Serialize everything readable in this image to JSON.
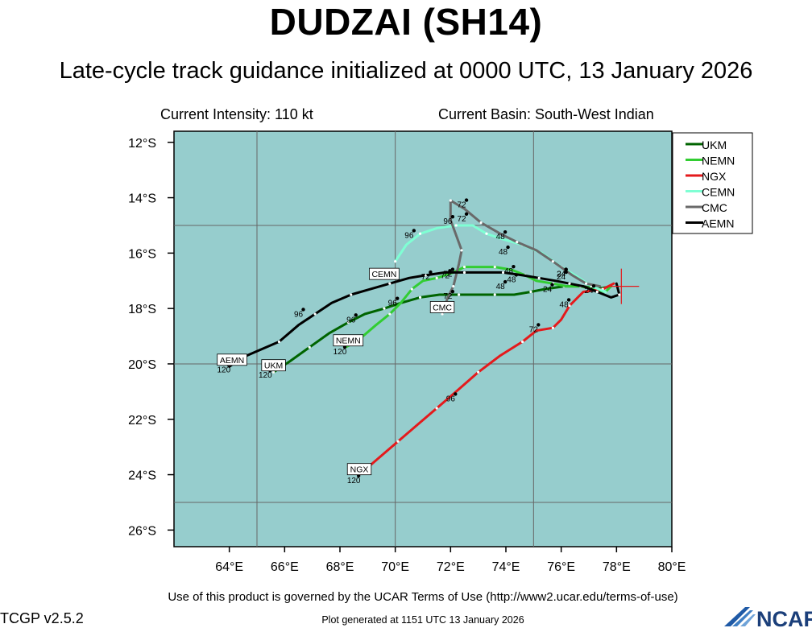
{
  "header": {
    "title": "DUDZAI (SH14)",
    "subtitle": "Late-cycle track guidance initialized at 0000 UTC, 13 January 2026",
    "intensity": "Current Intensity: 110 kt",
    "basin": "Current Basin: South-West Indian"
  },
  "footer": {
    "terms": "Use of this product is governed by the UCAR Terms of Use (http://www2.ucar.edu/terms-of-use)",
    "version": "TCGP v2.5.2",
    "generated": "Plot generated at 1151 UTC   13 January 2026",
    "logo_text": "NCAR"
  },
  "chart_data": {
    "type": "line",
    "x_range": [
      62,
      80
    ],
    "y_range": [
      -26.6,
      -11.6
    ],
    "x_ticks": [
      {
        "v": 64,
        "label": "64°E"
      },
      {
        "v": 66,
        "label": "66°E"
      },
      {
        "v": 68,
        "label": "68°E"
      },
      {
        "v": 70,
        "label": "70°E"
      },
      {
        "v": 72,
        "label": "72°E"
      },
      {
        "v": 74,
        "label": "74°E"
      },
      {
        "v": 76,
        "label": "76°E"
      },
      {
        "v": 78,
        "label": "78°E"
      },
      {
        "v": 80,
        "label": "80°E"
      }
    ],
    "y_ticks": [
      {
        "v": -12,
        "label": "12°S"
      },
      {
        "v": -14,
        "label": "14°S"
      },
      {
        "v": -16,
        "label": "16°S"
      },
      {
        "v": -18,
        "label": "18°S"
      },
      {
        "v": -20,
        "label": "20°S"
      },
      {
        "v": -22,
        "label": "22°S"
      },
      {
        "v": -24,
        "label": "24°S"
      },
      {
        "v": -26,
        "label": "26°S"
      }
    ],
    "grid_lon": [
      65,
      70,
      75
    ],
    "grid_lat": [
      -15,
      -20,
      -25
    ],
    "legend_position": "top-right",
    "colors": {
      "ocean": "#96cdcd",
      "grid": "#666666",
      "current_position": "#e41a1c"
    },
    "current_position": {
      "lon": 78.0,
      "lat": -17.2
    },
    "series": [
      {
        "name": "UKM",
        "color": "#006400",
        "points": [
          [
            77.8,
            -17.2
          ],
          [
            77.3,
            -17.3
          ],
          [
            76.8,
            -17.2
          ],
          [
            76.1,
            -17.2
          ],
          [
            75.4,
            -17.3
          ],
          [
            74.9,
            -17.4
          ],
          [
            74.3,
            -17.5
          ],
          [
            73.6,
            -17.5
          ],
          [
            72.9,
            -17.5
          ],
          [
            72.3,
            -17.5
          ],
          [
            71.6,
            -17.5
          ],
          [
            70.9,
            -17.6
          ],
          [
            70.2,
            -17.8
          ],
          [
            69.6,
            -18.0
          ],
          [
            68.9,
            -18.2
          ],
          [
            68.3,
            -18.5
          ],
          [
            67.6,
            -18.9
          ],
          [
            66.9,
            -19.4
          ],
          [
            66.2,
            -19.9
          ],
          [
            65.6,
            -20.3
          ]
        ],
        "labels": [
          {
            "text": "24",
            "lon": 75.5,
            "lat": -17.4
          },
          {
            "text": "48",
            "lon": 73.8,
            "lat": -17.3
          },
          {
            "text": "72",
            "lon": 71.8,
            "lat": -16.9
          },
          {
            "text": "96",
            "lon": 69.9,
            "lat": -17.9
          },
          {
            "text": "120",
            "lon": 65.3,
            "lat": -20.5
          }
        ],
        "box": {
          "text": "UKM",
          "lon": 65.6,
          "lat": -20.05
        }
      },
      {
        "name": "NEMN",
        "color": "#32cd32",
        "points": [
          [
            77.8,
            -17.2
          ],
          [
            77.6,
            -17.4
          ],
          [
            77.2,
            -17.3
          ],
          [
            76.7,
            -17.2
          ],
          [
            76.2,
            -17.2
          ],
          [
            75.7,
            -17.1
          ],
          [
            75.1,
            -17.0
          ],
          [
            74.7,
            -16.8
          ],
          [
            74.2,
            -16.6
          ],
          [
            73.6,
            -16.5
          ],
          [
            73.0,
            -16.5
          ],
          [
            72.5,
            -16.5
          ],
          [
            72.1,
            -16.7
          ],
          [
            71.5,
            -16.9
          ],
          [
            71.0,
            -17.0
          ],
          [
            70.6,
            -17.3
          ],
          [
            70.2,
            -17.8
          ],
          [
            69.8,
            -18.2
          ],
          [
            69.3,
            -18.6
          ],
          [
            68.6,
            -19.2
          ],
          [
            68.2,
            -19.4
          ]
        ],
        "labels": [
          {
            "text": "24",
            "lon": 77.0,
            "lat": -17.45
          },
          {
            "text": "48",
            "lon": 74.2,
            "lat": -17.05
          },
          {
            "text": "72",
            "lon": 71.9,
            "lat": -16.85
          },
          {
            "text": "96",
            "lon": 68.4,
            "lat": -18.5
          },
          {
            "text": "120",
            "lon": 68.0,
            "lat": -19.65
          }
        ],
        "box": {
          "text": "NEMN",
          "lon": 68.3,
          "lat": -19.15
        }
      },
      {
        "name": "NGX",
        "color": "#e41a1c",
        "points": [
          [
            77.9,
            -17.1
          ],
          [
            77.5,
            -17.3
          ],
          [
            76.8,
            -17.4
          ],
          [
            76.3,
            -17.9
          ],
          [
            76.0,
            -18.4
          ],
          [
            75.7,
            -18.7
          ],
          [
            75.1,
            -18.8
          ],
          [
            74.6,
            -19.2
          ],
          [
            73.8,
            -19.7
          ],
          [
            73.0,
            -20.3
          ],
          [
            72.2,
            -21.0
          ],
          [
            71.5,
            -21.6
          ],
          [
            70.8,
            -22.2
          ],
          [
            70.1,
            -22.8
          ],
          [
            69.4,
            -23.4
          ],
          [
            68.7,
            -24.0
          ]
        ],
        "labels": [
          {
            "text": "48",
            "lon": 76.1,
            "lat": -17.95
          },
          {
            "text": "72",
            "lon": 75.0,
            "lat": -18.85
          },
          {
            "text": "96",
            "lon": 72.0,
            "lat": -21.35
          },
          {
            "text": "120",
            "lon": 68.5,
            "lat": -24.3
          }
        ],
        "box": {
          "text": "NGX",
          "lon": 68.7,
          "lat": -23.8
        }
      },
      {
        "name": "CEMN",
        "color": "#7fffd4",
        "points": [
          [
            77.6,
            -17.4
          ],
          [
            77.1,
            -17.2
          ],
          [
            76.5,
            -16.8
          ],
          [
            76.0,
            -16.5
          ],
          [
            75.3,
            -16.0
          ],
          [
            74.6,
            -15.7
          ],
          [
            73.9,
            -15.5
          ],
          [
            73.3,
            -15.3
          ],
          [
            72.8,
            -15.0
          ],
          [
            72.2,
            -15.0
          ],
          [
            71.5,
            -15.1
          ],
          [
            70.9,
            -15.3
          ],
          [
            70.4,
            -15.7
          ],
          [
            70.0,
            -16.3
          ]
        ],
        "labels": [
          {
            "text": "24",
            "lon": 76.0,
            "lat": -16.85
          },
          {
            "text": "48",
            "lon": 73.8,
            "lat": -15.5
          },
          {
            "text": "72",
            "lon": 72.4,
            "lat": -14.35
          },
          {
            "text": "96",
            "lon": 70.5,
            "lat": -15.45
          }
        ],
        "box": {
          "text": "CEMN",
          "lon": 69.6,
          "lat": -16.75
        }
      },
      {
        "name": "CMC",
        "color": "#696969",
        "points": [
          [
            77.4,
            -17.2
          ],
          [
            76.9,
            -17.1
          ],
          [
            76.4,
            -16.8
          ],
          [
            75.7,
            -16.3
          ],
          [
            75.1,
            -15.9
          ],
          [
            74.4,
            -15.6
          ],
          [
            73.8,
            -15.3
          ],
          [
            73.1,
            -14.9
          ],
          [
            72.5,
            -14.4
          ],
          [
            72.0,
            -14.1
          ],
          [
            72.0,
            -14.8
          ],
          [
            72.4,
            -15.9
          ],
          [
            72.3,
            -16.4
          ],
          [
            72.1,
            -17.2
          ],
          [
            71.9,
            -17.6
          ],
          [
            71.7,
            -18.2
          ]
        ],
        "labels": [
          {
            "text": "24",
            "lon": 76.0,
            "lat": -16.95
          },
          {
            "text": "48",
            "lon": 73.9,
            "lat": -16.05
          },
          {
            "text": "72",
            "lon": 72.4,
            "lat": -14.85
          },
          {
            "text": "96",
            "lon": 71.9,
            "lat": -14.95
          },
          {
            "text": "72",
            "lon": 71.9,
            "lat": -17.65
          }
        ],
        "box": {
          "text": "CMC",
          "lon": 71.7,
          "lat": -17.95
        }
      },
      {
        "name": "AEMN",
        "color": "#000000",
        "points": [
          [
            78.0,
            -17.1
          ],
          [
            78.1,
            -17.5
          ],
          [
            77.8,
            -17.6
          ],
          [
            77.3,
            -17.4
          ],
          [
            76.8,
            -17.2
          ],
          [
            76.3,
            -17.1
          ],
          [
            75.8,
            -17.0
          ],
          [
            75.2,
            -16.9
          ],
          [
            74.6,
            -16.8
          ],
          [
            73.9,
            -16.7
          ],
          [
            73.2,
            -16.7
          ],
          [
            72.5,
            -16.7
          ],
          [
            71.8,
            -16.7
          ],
          [
            71.1,
            -16.8
          ],
          [
            70.5,
            -16.9
          ],
          [
            69.8,
            -17.1
          ],
          [
            69.1,
            -17.3
          ],
          [
            68.4,
            -17.5
          ],
          [
            67.7,
            -17.8
          ],
          [
            67.1,
            -18.2
          ],
          [
            66.5,
            -18.6
          ],
          [
            65.8,
            -19.2
          ],
          [
            65.1,
            -19.5
          ],
          [
            64.4,
            -19.8
          ],
          [
            64.0,
            -20.1
          ]
        ],
        "labels": [
          {
            "text": "24",
            "lon": 76.0,
            "lat": -16.85
          },
          {
            "text": "48",
            "lon": 74.1,
            "lat": -16.75
          },
          {
            "text": "72",
            "lon": 71.1,
            "lat": -16.95
          },
          {
            "text": "96",
            "lon": 66.5,
            "lat": -18.3
          },
          {
            "text": "120",
            "lon": 63.8,
            "lat": -20.3
          }
        ],
        "box": {
          "text": "AEMN",
          "lon": 64.1,
          "lat": -19.85
        }
      }
    ]
  }
}
